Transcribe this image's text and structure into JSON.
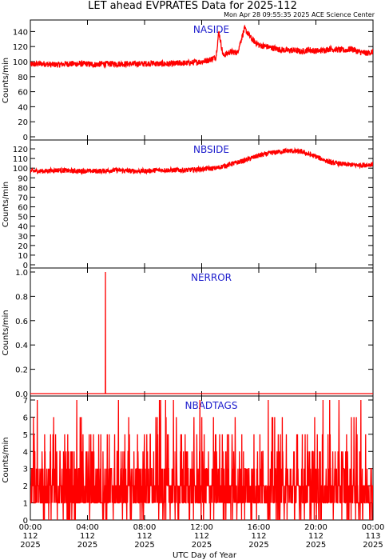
{
  "header": {
    "title": "LET ahead EVPRATES Data for 2025-112",
    "subtitle": "Mon Apr 28 09:55:35 2025 ACE Science Center"
  },
  "chart_data": [
    {
      "type": "line",
      "title": "NASIDE",
      "ylabel": "Counts/min",
      "ylim": [
        0,
        150
      ],
      "yticks": [
        "0",
        "20",
        "40",
        "60",
        "80",
        "100",
        "120",
        "140"
      ],
      "color": "#ff0000",
      "x_hours": [
        0,
        0.5,
        1,
        1.5,
        2,
        2.5,
        3,
        3.5,
        4,
        4.5,
        5,
        5.5,
        6,
        6.5,
        7,
        7.5,
        8,
        8.5,
        9,
        9.5,
        10,
        10.5,
        11,
        11.5,
        12,
        12.5,
        13,
        13.2,
        13.5,
        14,
        14.5,
        15,
        15.5,
        16,
        16.5,
        17,
        17.5,
        18,
        18.5,
        19,
        19.5,
        20,
        20.5,
        21,
        21.5,
        22,
        22.5,
        23,
        23.5,
        24
      ],
      "values": [
        96,
        97,
        97,
        96,
        96,
        97,
        97,
        97,
        97,
        96,
        97,
        97,
        97,
        97,
        97,
        97,
        97,
        98,
        97,
        97,
        97,
        98,
        98,
        99,
        100,
        102,
        106,
        140,
        108,
        113,
        112,
        144,
        130,
        122,
        120,
        118,
        116,
        115,
        115,
        113,
        116,
        114,
        115,
        117,
        116,
        115,
        117,
        113,
        111,
        113
      ],
      "noise": 8
    },
    {
      "type": "line",
      "title": "NBSIDE",
      "ylabel": "Counts/min",
      "ylim": [
        0,
        125
      ],
      "yticks": [
        "0",
        "10",
        "20",
        "30",
        "40",
        "50",
        "60",
        "70",
        "80",
        "90",
        "100",
        "110",
        "120"
      ],
      "color": "#ff0000",
      "x_hours": [
        0,
        1,
        2,
        3,
        4,
        5,
        6,
        7,
        8,
        9,
        10,
        11,
        12,
        13,
        14,
        15,
        16,
        17,
        18,
        19,
        20,
        21,
        22,
        23,
        24
      ],
      "values": [
        97,
        97,
        98,
        97,
        97,
        97,
        98,
        97,
        97,
        98,
        98,
        98,
        99,
        100,
        104,
        108,
        113,
        116,
        118,
        117,
        112,
        106,
        104,
        103,
        104
      ],
      "noise": 5
    },
    {
      "type": "line",
      "title": "NERROR",
      "ylabel": "Counts/min",
      "ylim": [
        0,
        1.0
      ],
      "yticks": [
        "0.0",
        "0.2",
        "0.4",
        "0.6",
        "0.8",
        "1.0"
      ],
      "color": "#ff0000",
      "x_hours": [
        0,
        5.25,
        5.26,
        5.27,
        24
      ],
      "values": [
        0,
        0,
        1,
        0,
        0
      ],
      "noise": 0
    },
    {
      "type": "line",
      "title": "NBADTAGS",
      "ylabel": "Counts/min",
      "ylim": [
        0,
        7
      ],
      "yticks": [
        "0",
        "1",
        "2",
        "3",
        "4",
        "5",
        "6",
        "7"
      ],
      "color": "#ff0000",
      "x_hours": [
        0,
        24
      ],
      "values": [
        1.5,
        1.5
      ],
      "noise": 0,
      "discrete_max": 7
    }
  ],
  "xaxis": {
    "label": "UTC Day of Year",
    "ticks": [
      {
        "time": "00:00",
        "doy": "112",
        "year": "2025"
      },
      {
        "time": "04:00",
        "doy": "112",
        "year": "2025"
      },
      {
        "time": "08:00",
        "doy": "112",
        "year": "2025"
      },
      {
        "time": "12:00",
        "doy": "112",
        "year": "2025"
      },
      {
        "time": "16:00",
        "doy": "112",
        "year": "2025"
      },
      {
        "time": "20:00",
        "doy": "112",
        "year": "2025"
      },
      {
        "time": "00:00",
        "doy": "113",
        "year": "2025"
      }
    ],
    "range_hours": [
      0,
      24
    ]
  }
}
